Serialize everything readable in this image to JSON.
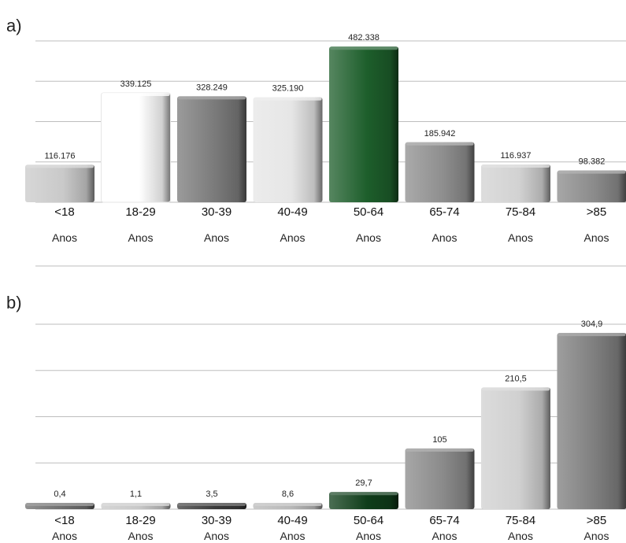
{
  "chart_data": [
    {
      "type": "bar",
      "panel_label": "a)",
      "categories": [
        "<18",
        "18-29",
        "30-39",
        "40-49",
        "50-64",
        "65-74",
        "75-84",
        ">85"
      ],
      "category_unit": "Anos",
      "values": [
        116176,
        339125,
        328249,
        325190,
        482338,
        185942,
        116937,
        98382
      ],
      "value_labels": [
        "116.176",
        "339.125",
        "328.249",
        "325.190",
        "482.338",
        "185.942",
        "116.937",
        "98.382"
      ],
      "bar_colors": [
        "#c9c9c9",
        "#ffffff",
        "#7a7a7a",
        "#e6e6e6",
        "#1d5e2b",
        "#8e8e8e",
        "#d2d2d2",
        "#8a8a8a"
      ],
      "ylim": [
        0,
        500000
      ],
      "grid": true
    },
    {
      "type": "bar",
      "panel_label": "b)",
      "categories": [
        "<18",
        "18-29",
        "30-39",
        "40-49",
        "50-64",
        "65-74",
        "75-84",
        ">85"
      ],
      "category_unit": "Anos",
      "values": [
        0.4,
        1.1,
        3.5,
        8.6,
        29.7,
        105,
        210.5,
        304.9
      ],
      "value_labels": [
        "0,4",
        "1,1",
        "3,5",
        "8,6",
        "29,7",
        "105",
        "210,5",
        "304,9"
      ],
      "bar_colors": [
        "#6e6e6e",
        "#c8c8c8",
        "#3a3a3a",
        "#b8b8b8",
        "#0f3d1a",
        "#8a8a8a",
        "#d0d0d0",
        "#7e7e7e"
      ],
      "ylim": [
        0,
        320
      ],
      "grid": true
    }
  ]
}
